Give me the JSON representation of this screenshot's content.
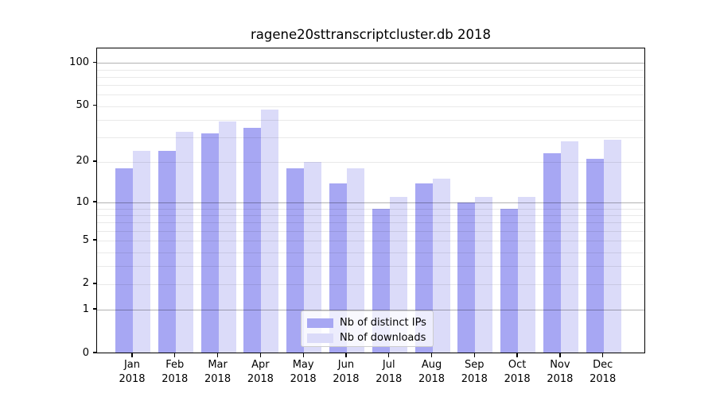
{
  "chart_data": {
    "type": "bar",
    "title": "ragene20sttranscriptcluster.db 2018",
    "categories": [
      "Jan",
      "Feb",
      "Mar",
      "Apr",
      "May",
      "Jun",
      "Jul",
      "Aug",
      "Sep",
      "Oct",
      "Nov",
      "Dec"
    ],
    "x_tick_second_line": "2018",
    "series": [
      {
        "name": "Nb of distinct IPs",
        "color": "#a7a7f3",
        "values": [
          18,
          24,
          32,
          35,
          18,
          14,
          9,
          14,
          10,
          9,
          23,
          21
        ]
      },
      {
        "name": "Nb of downloads",
        "color": "#dbdbf9",
        "values": [
          24,
          33,
          39,
          47,
          20,
          18,
          11,
          15,
          11,
          11,
          28,
          29
        ]
      }
    ],
    "y_scale": "log1p",
    "y_ticks": [
      0,
      1,
      2,
      5,
      10,
      20,
      50,
      100
    ],
    "y_gridlines": [
      1,
      2,
      3,
      4,
      5,
      6,
      7,
      8,
      9,
      10,
      20,
      30,
      40,
      50,
      60,
      70,
      80,
      90,
      100
    ],
    "y_major_gridlines": [
      1,
      10,
      100
    ],
    "ylim": [
      0,
      127
    ],
    "grid": "horizontal major+minor",
    "legend_position": "bottom-center",
    "xlabel": "",
    "ylabel": ""
  }
}
